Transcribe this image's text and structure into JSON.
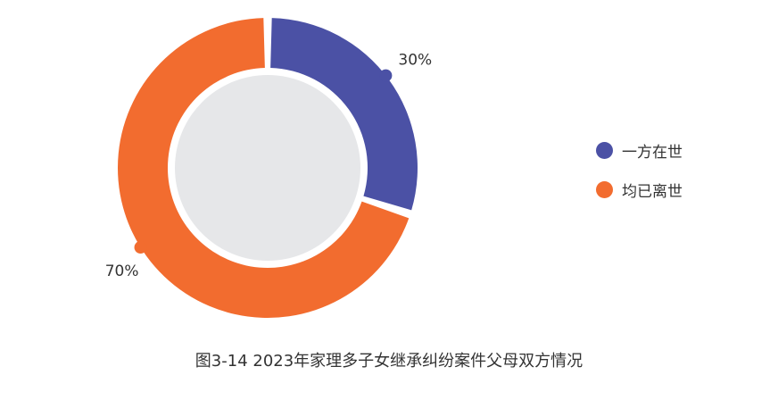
{
  "chart_data": {
    "type": "pie",
    "title": "图3-14  2023年家理多子女继承纠纷案件父母双方情况",
    "categories": [
      "一方在世",
      "均已离世"
    ],
    "values": [
      30,
      70
    ],
    "value_labels": [
      "30%",
      "70%"
    ],
    "colors": [
      "#4B51A5",
      "#F26C2F"
    ],
    "center_color": "#E6E7E9",
    "legend": "right"
  }
}
